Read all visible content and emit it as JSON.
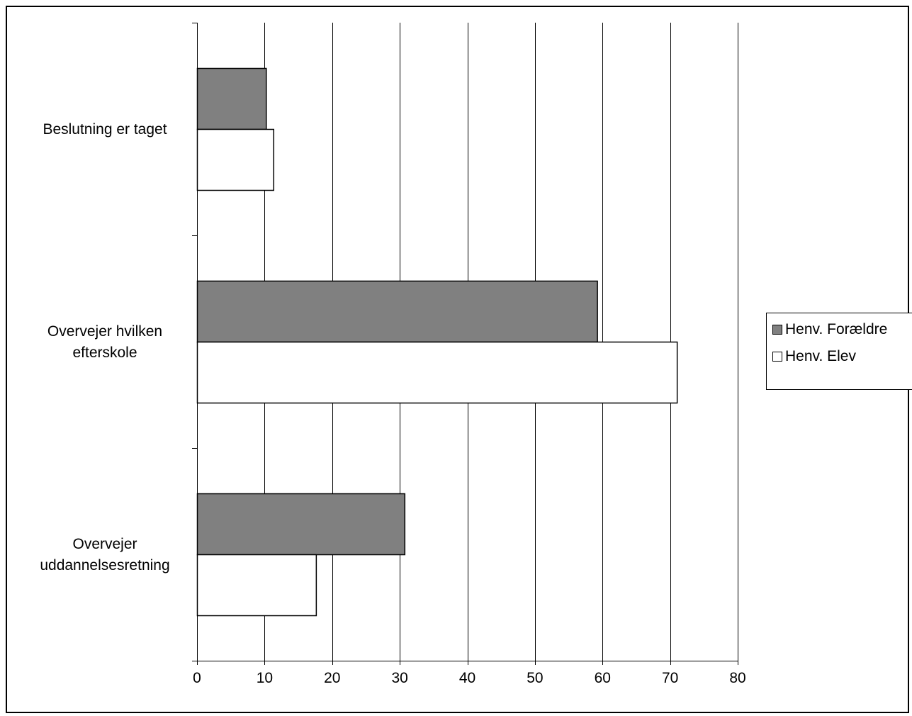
{
  "chart_data": {
    "type": "bar",
    "orientation": "horizontal",
    "categories": [
      "Beslutning er taget",
      "Overvejer hvilken efterskole",
      "Overvejer uddannelsesretning"
    ],
    "category_lines": [
      [
        "Beslutning er taget"
      ],
      [
        "Overvejer hvilken",
        "efterskole"
      ],
      [
        "Overvejer",
        "uddannelsesretning"
      ]
    ],
    "series": [
      {
        "name": "Henv. Forældre",
        "values": [
          10.2,
          59.2,
          30.7
        ],
        "color": "#808080"
      },
      {
        "name": "Henv. Elev",
        "values": [
          11.3,
          71.0,
          17.6
        ],
        "color": "#ffffff"
      }
    ],
    "xlim": [
      0,
      80
    ],
    "xticks": [
      "0",
      "10",
      "20",
      "30",
      "40",
      "50",
      "60",
      "70",
      "80"
    ],
    "grid": "vertical",
    "legend_position": "right",
    "title": "",
    "xlabel": "",
    "ylabel": ""
  }
}
